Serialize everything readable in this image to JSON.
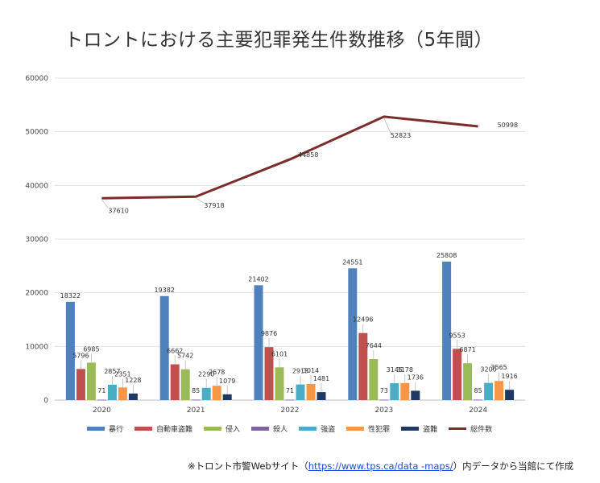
{
  "chart_data": {
    "type": "bar",
    "title": "トロントにおける主要犯罪発生件数推移（5年間）",
    "categories": [
      "2020",
      "2021",
      "2022",
      "2023",
      "2024"
    ],
    "ylim": [
      0,
      60000
    ],
    "yticks": [
      0,
      10000,
      20000,
      30000,
      40000,
      50000,
      60000
    ],
    "grid": true,
    "legend_position": "bottom",
    "series": [
      {
        "name": "暴行",
        "color": "#4f81bd",
        "values": [
          18322,
          19382,
          21402,
          24551,
          25808
        ]
      },
      {
        "name": "自動車盗難",
        "color": "#c0504d",
        "values": [
          5796,
          6662,
          9876,
          12496,
          9553
        ]
      },
      {
        "name": "侵入",
        "color": "#9bbb59",
        "values": [
          6985,
          5742,
          6101,
          7644,
          6871
        ]
      },
      {
        "name": "殺人",
        "color": "#8064a2",
        "values": [
          71,
          85,
          71,
          73,
          85
        ]
      },
      {
        "name": "強盗",
        "color": "#4bacc6",
        "values": [
          2857,
          2290,
          2913,
          3145,
          3200
        ]
      },
      {
        "name": "性犯罪",
        "color": "#f79646",
        "values": [
          2351,
          2678,
          3014,
          3178,
          3565
        ]
      },
      {
        "name": "盗難",
        "color": "#1f3864",
        "values": [
          1228,
          1079,
          1481,
          1736,
          1916
        ]
      }
    ],
    "line_series": {
      "name": "総件数",
      "color": "#7b2c2c",
      "values": [
        37610,
        37918,
        44858,
        52823,
        50998
      ]
    }
  },
  "footer": {
    "prefix": "※トロント市警Webサイト（",
    "link": "https://www.tps.ca/data -maps/",
    "suffix": "）内データから当館にて作成"
  }
}
